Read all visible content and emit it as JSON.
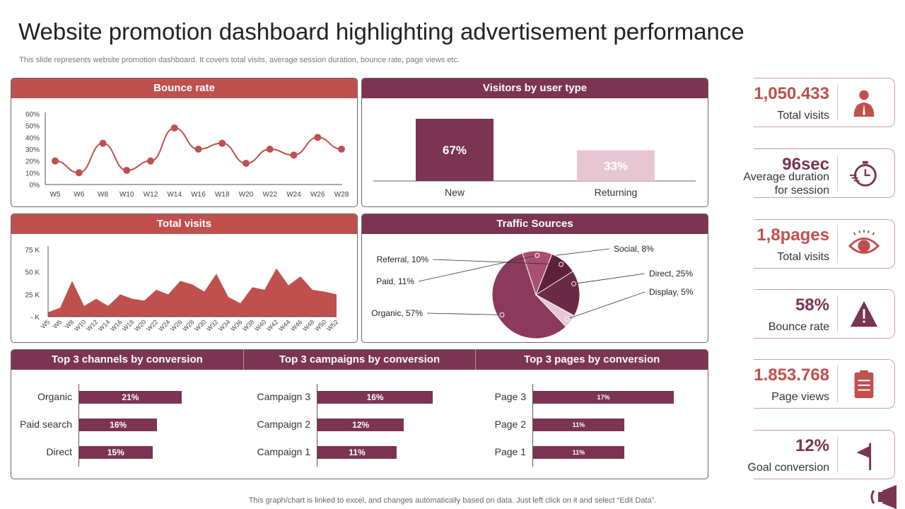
{
  "header": {
    "title": "Website promotion dashboard highlighting advertisement performance",
    "subtitle": "This slide represents website promotion dashboard. It covers total visits, average session duration, bounce rate, page views etc."
  },
  "footer": "This graph/chart is linked to excel,  and changes automatically based on data. Just left click on it and select “Edit Data”.",
  "colors": {
    "red": "#c0504d",
    "plum": "#7b3451",
    "pink": "#e8c6d3"
  },
  "chart_data": [
    {
      "type": "line",
      "title": "Bounce rate",
      "categories": [
        "W5",
        "W6",
        "W8",
        "W10",
        "W12",
        "W14",
        "W16",
        "W18",
        "W20",
        "W22",
        "W24",
        "W26",
        "W28"
      ],
      "values": [
        20,
        10,
        35,
        12,
        20,
        48,
        30,
        35,
        18,
        30,
        25,
        40,
        30
      ],
      "ylim": [
        0,
        60
      ],
      "yticks": [
        "0%",
        "10%",
        "20%",
        "30%",
        "40%",
        "50%",
        "60%"
      ]
    },
    {
      "type": "bar",
      "title": "Visitors by user type",
      "categories": [
        "New",
        "Returning"
      ],
      "values": [
        67,
        33
      ],
      "labels": [
        "67%",
        "33%"
      ]
    },
    {
      "type": "area",
      "title": "Total visits",
      "categories": [
        "W5",
        "W6",
        "W8",
        "W10",
        "W12",
        "W14",
        "W16",
        "W18",
        "W20",
        "W22",
        "W24",
        "W26",
        "W28",
        "W30",
        "W32",
        "W34",
        "W36",
        "W38",
        "W40",
        "W42",
        "W44",
        "W46",
        "W48",
        "W50",
        "W52"
      ],
      "values": [
        5,
        10,
        40,
        12,
        20,
        12,
        25,
        20,
        18,
        30,
        25,
        40,
        36,
        28,
        48,
        22,
        15,
        33,
        30,
        54,
        35,
        45,
        30,
        28,
        25
      ],
      "ylim": [
        0,
        75
      ],
      "yticks": [
        "- K",
        "25 K",
        "50 K",
        "75 K"
      ]
    },
    {
      "type": "pie",
      "title": "Traffic Sources",
      "slices": [
        {
          "label": "Social, 8%",
          "value": 8,
          "color": "#c98aa5"
        },
        {
          "label": "Direct, 25%",
          "value": 25,
          "color": "#6b2a45"
        },
        {
          "label": "Display, 5%",
          "value": 5,
          "color": "#e8c6d3"
        },
        {
          "label": "Organic, 57%",
          "value": 57,
          "color": "#8b3a5c"
        },
        {
          "label": "Paid, 11%",
          "value": 11,
          "color": "#a84f72"
        },
        {
          "label": "Referral, 10%",
          "value": 10,
          "color": "#5e2139"
        }
      ]
    }
  ],
  "conversions": [
    {
      "title": "Top 3 channels by conversion",
      "items": [
        {
          "label": "Organic",
          "value": 21,
          "text": "21%"
        },
        {
          "label": "Paid search",
          "value": 16,
          "text": "16%"
        },
        {
          "label": "Direct",
          "value": 15,
          "text": "15%"
        }
      ]
    },
    {
      "title": "Top 3 campaigns by conversion",
      "items": [
        {
          "label": "Campaign 3",
          "value": 16,
          "text": "16%"
        },
        {
          "label": "Campaign 2",
          "value": 12,
          "text": "12%"
        },
        {
          "label": "Campaign 1",
          "value": 11,
          "text": "11%"
        }
      ]
    },
    {
      "title": "Top 3 pages by conversion",
      "items": [
        {
          "label": "Page 3",
          "value": 17,
          "text": "17%"
        },
        {
          "label": "Page 2",
          "value": 11,
          "text": "11%"
        },
        {
          "label": "Page 1",
          "value": 11,
          "text": "11%"
        }
      ]
    }
  ],
  "kpis": [
    {
      "value": "1,050.433",
      "label": "Total visits",
      "icon": "businessman-icon",
      "color": "#c0504d"
    },
    {
      "value": "96sec",
      "label": "Average duration for session",
      "icon": "stopwatch-icon",
      "color": "#7b3451"
    },
    {
      "value": "1,8pages",
      "label": "Total visits",
      "icon": "eye-icon",
      "color": "#c0504d"
    },
    {
      "value": "58%",
      "label": "Bounce rate",
      "icon": "warning-icon",
      "color": "#7b3451"
    },
    {
      "value": "1.853.768",
      "label": "Page views",
      "icon": "clipboard-icon",
      "color": "#c0504d"
    },
    {
      "value": "12%",
      "label": "Goal conversion",
      "icon": "flag-icon",
      "color": "#7b3451"
    }
  ]
}
